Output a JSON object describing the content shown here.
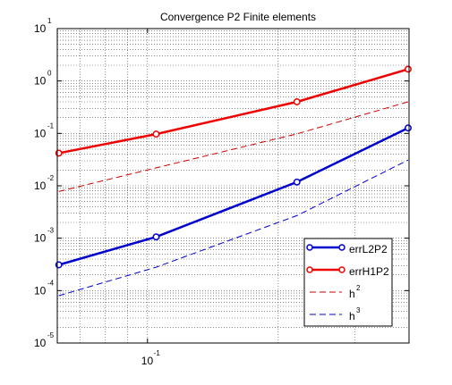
{
  "chart_data": {
    "type": "line",
    "title": "Convergence P2 Finite elements",
    "xlabel": "",
    "ylabel": "",
    "xscale": "log",
    "yscale": "log",
    "xlim": [
      0.062,
      0.4
    ],
    "ylim": [
      1e-05,
      10
    ],
    "grid": true,
    "legend_position": "lower-right",
    "x_tick_labels": [
      {
        "base": "10",
        "exp": "-1"
      }
    ],
    "y_tick_labels": [
      {
        "base": "10",
        "exp": "1"
      },
      {
        "base": "10",
        "exp": "0"
      },
      {
        "base": "10",
        "exp": "-1"
      },
      {
        "base": "10",
        "exp": "-2"
      },
      {
        "base": "10",
        "exp": "-3"
      },
      {
        "base": "10",
        "exp": "-4"
      },
      {
        "base": "10",
        "exp": "-5"
      }
    ],
    "series": [
      {
        "name": "errL2P2",
        "color": "#0000cc",
        "style": "solid-markers",
        "x": [
          0.0625,
          0.1047,
          0.2208,
          0.3981
        ],
        "y": [
          0.00031,
          0.00106,
          0.0118,
          0.127
        ]
      },
      {
        "name": "errH1P2",
        "color": "#ee0000",
        "style": "solid-markers",
        "x": [
          0.0625,
          0.1047,
          0.2208,
          0.3981
        ],
        "y": [
          0.042,
          0.097,
          0.4,
          1.68
        ]
      },
      {
        "name": "h",
        "name_sup": "2",
        "color": "#cc0000",
        "style": "dashed",
        "x": [
          0.0625,
          0.1047,
          0.2208,
          0.3981
        ],
        "y": [
          0.0078,
          0.022,
          0.098,
          0.4
        ]
      },
      {
        "name": "h",
        "name_sup": "3",
        "color": "#0000cc",
        "style": "dashed",
        "x": [
          0.0625,
          0.1047,
          0.2208,
          0.3981
        ],
        "y": [
          8e-05,
          0.00028,
          0.0027,
          0.031
        ]
      }
    ]
  }
}
